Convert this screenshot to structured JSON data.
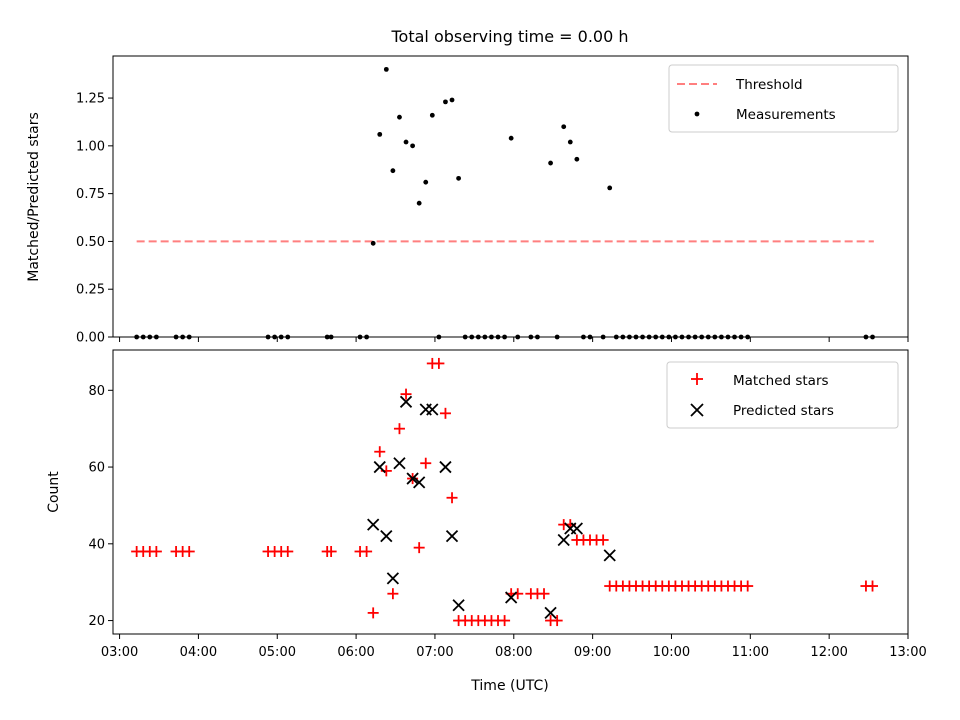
{
  "chart_data": {
    "title": "Total observing time = 0.00 h",
    "xlabel": "Time (UTC)",
    "xlim": [
      "02:55",
      "13:00"
    ],
    "x_tick_labels": [
      "03:00",
      "04:00",
      "05:00",
      "06:00",
      "07:00",
      "08:00",
      "09:00",
      "10:00",
      "11:00",
      "12:00",
      "13:00"
    ],
    "x_ticks": [
      "03:00",
      "04:00",
      "05:00",
      "06:00",
      "07:00",
      "08:00",
      "09:00",
      "10:00",
      "11:00",
      "12:00",
      "13:00"
    ],
    "panels": [
      {
        "type": "scatter",
        "ylabel": "Matched/Predicted stars",
        "ylim": [
          0,
          1.47
        ],
        "y_ticks": [
          0,
          0.25,
          0.5,
          0.75,
          1.0,
          1.25
        ],
        "y_tick_labels": [
          "0.00",
          "0.25",
          "0.50",
          "0.75",
          "1.00",
          "1.25"
        ],
        "legend_position": "top-right",
        "series": [
          {
            "name": "Threshold",
            "kind": "dashed-line",
            "color": "#ff7f7f",
            "x": [
              "03:13",
              "12:34"
            ],
            "y": [
              0.5,
              0.5
            ]
          },
          {
            "name": "Measurements",
            "kind": "points",
            "color": "#000000",
            "points": [
              [
                "03:13",
                0
              ],
              [
                "03:18",
                0
              ],
              [
                "03:23",
                0
              ],
              [
                "03:28",
                0
              ],
              [
                "03:43",
                0
              ],
              [
                "03:48",
                0
              ],
              [
                "03:53",
                0
              ],
              [
                "04:53",
                0
              ],
              [
                "04:58",
                0
              ],
              [
                "05:03",
                0
              ],
              [
                "05:08",
                0
              ],
              [
                "05:38",
                0
              ],
              [
                "05:41",
                0
              ],
              [
                "06:03",
                0
              ],
              [
                "06:08",
                0
              ],
              [
                "06:13",
                0.49
              ],
              [
                "06:18",
                1.06
              ],
              [
                "06:23",
                1.4
              ],
              [
                "06:28",
                0.87
              ],
              [
                "06:33",
                1.15
              ],
              [
                "06:38",
                1.02
              ],
              [
                "06:43",
                1.0
              ],
              [
                "06:48",
                0.7
              ],
              [
                "06:53",
                0.81
              ],
              [
                "06:58",
                1.16
              ],
              [
                "07:03",
                0
              ],
              [
                "07:08",
                1.23
              ],
              [
                "07:13",
                1.24
              ],
              [
                "07:18",
                0.83
              ],
              [
                "07:23",
                0
              ],
              [
                "07:28",
                0
              ],
              [
                "07:33",
                0
              ],
              [
                "07:38",
                0
              ],
              [
                "07:43",
                0
              ],
              [
                "07:48",
                0
              ],
              [
                "07:53",
                0
              ],
              [
                "07:58",
                1.04
              ],
              [
                "08:03",
                0
              ],
              [
                "08:13",
                0
              ],
              [
                "08:18",
                0
              ],
              [
                "08:28",
                0.91
              ],
              [
                "08:33",
                0
              ],
              [
                "08:38",
                1.1
              ],
              [
                "08:43",
                1.02
              ],
              [
                "08:48",
                0.93
              ],
              [
                "08:53",
                0
              ],
              [
                "08:58",
                0
              ],
              [
                "09:08",
                0
              ],
              [
                "09:13",
                0.78
              ],
              [
                "09:18",
                0
              ],
              [
                "09:23",
                0
              ],
              [
                "09:28",
                0
              ],
              [
                "09:33",
                0
              ],
              [
                "09:38",
                0
              ],
              [
                "09:43",
                0
              ],
              [
                "09:48",
                0
              ],
              [
                "09:53",
                0
              ],
              [
                "09:58",
                0
              ],
              [
                "10:03",
                0
              ],
              [
                "10:08",
                0
              ],
              [
                "10:13",
                0
              ],
              [
                "10:18",
                0
              ],
              [
                "10:23",
                0
              ],
              [
                "10:28",
                0
              ],
              [
                "10:33",
                0
              ],
              [
                "10:38",
                0
              ],
              [
                "10:43",
                0
              ],
              [
                "10:48",
                0
              ],
              [
                "10:53",
                0
              ],
              [
                "10:58",
                0
              ],
              [
                "12:28",
                0
              ],
              [
                "12:33",
                0
              ]
            ]
          }
        ]
      },
      {
        "type": "scatter",
        "ylabel": "Count",
        "ylim": [
          16.5,
          90.5
        ],
        "y_ticks": [
          20,
          40,
          60,
          80
        ],
        "y_tick_labels": [
          "20",
          "40",
          "60",
          "80"
        ],
        "legend_position": "top-right",
        "series": [
          {
            "name": "Matched stars",
            "marker": "plus",
            "color": "#ff0000",
            "points": [
              [
                "03:13",
                38
              ],
              [
                "03:18",
                38
              ],
              [
                "03:23",
                38
              ],
              [
                "03:28",
                38
              ],
              [
                "03:43",
                38
              ],
              [
                "03:48",
                38
              ],
              [
                "03:53",
                38
              ],
              [
                "04:53",
                38
              ],
              [
                "04:58",
                38
              ],
              [
                "05:03",
                38
              ],
              [
                "05:08",
                38
              ],
              [
                "05:38",
                38
              ],
              [
                "05:41",
                38
              ],
              [
                "06:03",
                38
              ],
              [
                "06:08",
                38
              ],
              [
                "06:13",
                22
              ],
              [
                "06:18",
                64
              ],
              [
                "06:23",
                59
              ],
              [
                "06:28",
                27
              ],
              [
                "06:33",
                70
              ],
              [
                "06:38",
                79
              ],
              [
                "06:43",
                57
              ],
              [
                "06:48",
                39
              ],
              [
                "06:53",
                61
              ],
              [
                "06:58",
                87
              ],
              [
                "07:03",
                87
              ],
              [
                "07:08",
                74
              ],
              [
                "07:13",
                52
              ],
              [
                "07:18",
                20
              ],
              [
                "07:23",
                20
              ],
              [
                "07:28",
                20
              ],
              [
                "07:33",
                20
              ],
              [
                "07:38",
                20
              ],
              [
                "07:43",
                20
              ],
              [
                "07:48",
                20
              ],
              [
                "07:53",
                20
              ],
              [
                "07:58",
                27
              ],
              [
                "08:03",
                27
              ],
              [
                "08:13",
                27
              ],
              [
                "08:18",
                27
              ],
              [
                "08:23",
                27
              ],
              [
                "08:28",
                20
              ],
              [
                "08:33",
                20
              ],
              [
                "08:38",
                45
              ],
              [
                "08:43",
                45
              ],
              [
                "08:48",
                41
              ],
              [
                "08:53",
                41
              ],
              [
                "08:58",
                41
              ],
              [
                "09:03",
                41
              ],
              [
                "09:08",
                41
              ],
              [
                "09:13",
                29
              ],
              [
                "09:18",
                29
              ],
              [
                "09:23",
                29
              ],
              [
                "09:28",
                29
              ],
              [
                "09:33",
                29
              ],
              [
                "09:38",
                29
              ],
              [
                "09:43",
                29
              ],
              [
                "09:48",
                29
              ],
              [
                "09:53",
                29
              ],
              [
                "09:58",
                29
              ],
              [
                "10:03",
                29
              ],
              [
                "10:08",
                29
              ],
              [
                "10:13",
                29
              ],
              [
                "10:18",
                29
              ],
              [
                "10:23",
                29
              ],
              [
                "10:28",
                29
              ],
              [
                "10:33",
                29
              ],
              [
                "10:38",
                29
              ],
              [
                "10:43",
                29
              ],
              [
                "10:48",
                29
              ],
              [
                "10:53",
                29
              ],
              [
                "10:58",
                29
              ],
              [
                "12:28",
                29
              ],
              [
                "12:33",
                29
              ]
            ]
          },
          {
            "name": "Predicted stars",
            "marker": "x",
            "color": "#000000",
            "points": [
              [
                "06:13",
                45
              ],
              [
                "06:18",
                60
              ],
              [
                "06:23",
                42
              ],
              [
                "06:28",
                31
              ],
              [
                "06:33",
                61
              ],
              [
                "06:38",
                77
              ],
              [
                "06:43",
                57
              ],
              [
                "06:48",
                56
              ],
              [
                "06:53",
                75
              ],
              [
                "06:58",
                75
              ],
              [
                "07:08",
                60
              ],
              [
                "07:13",
                42
              ],
              [
                "07:18",
                24
              ],
              [
                "07:58",
                26
              ],
              [
                "08:28",
                22
              ],
              [
                "08:38",
                41
              ],
              [
                "08:43",
                44
              ],
              [
                "08:48",
                44
              ],
              [
                "09:13",
                37
              ]
            ]
          }
        ]
      }
    ]
  }
}
